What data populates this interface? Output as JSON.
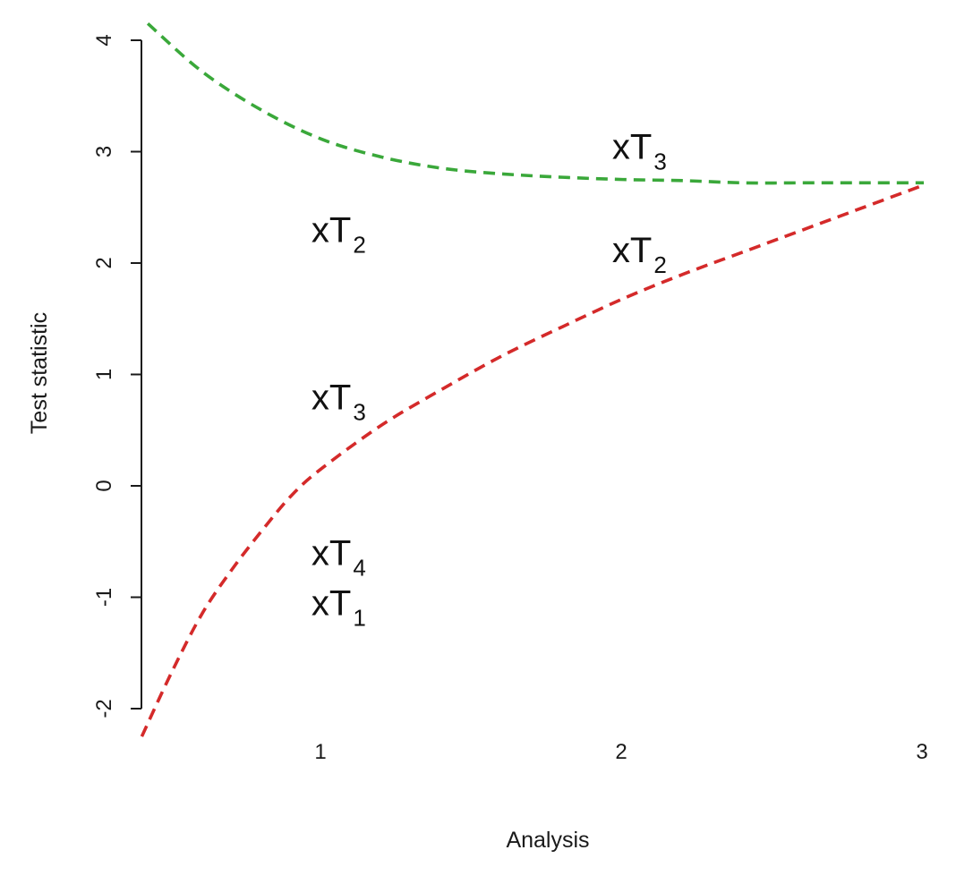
{
  "chart_data": {
    "type": "line",
    "title": "",
    "xlabel": "Analysis",
    "ylabel": "Test statistic",
    "xlim": [
      0.4,
      3.0
    ],
    "ylim": [
      -2.3,
      4.2
    ],
    "x_ticks": [
      1,
      2,
      3
    ],
    "y_ticks": [
      -2,
      -1,
      0,
      1,
      2,
      3,
      4
    ],
    "grid": false,
    "legend": "none",
    "series": [
      {
        "color": "#3aa83a",
        "line_style": "dashed",
        "x": [
          0.42,
          0.6,
          0.8,
          1.0,
          1.2,
          1.4,
          1.6,
          1.8,
          2.0,
          2.2,
          2.4,
          2.6,
          2.8,
          3.0
        ],
        "y": [
          4.15,
          3.72,
          3.37,
          3.11,
          2.95,
          2.85,
          2.8,
          2.77,
          2.75,
          2.74,
          2.72,
          2.72,
          2.72,
          2.72
        ]
      },
      {
        "color": "#d42a2a",
        "line_style": "dashed",
        "x": [
          0.4,
          0.5,
          0.6,
          0.7,
          0.8,
          0.9,
          1.0,
          1.2,
          1.4,
          1.6,
          1.8,
          2.0,
          2.2,
          2.4,
          2.6,
          2.8,
          3.0
        ],
        "y": [
          -2.25,
          -1.67,
          -1.15,
          -0.75,
          -0.4,
          -0.08,
          0.16,
          0.55,
          0.87,
          1.17,
          1.43,
          1.68,
          1.9,
          2.1,
          2.3,
          2.5,
          2.7
        ]
      }
    ],
    "annotations": [
      {
        "label": "xT",
        "sub": "2",
        "x": 0.97,
        "y": 2.3
      },
      {
        "label": "xT",
        "sub": "3",
        "x": 0.97,
        "y": 0.8
      },
      {
        "label": "xT",
        "sub": "4",
        "x": 0.97,
        "y": -0.6
      },
      {
        "label": "xT",
        "sub": "1",
        "x": 0.97,
        "y": -1.05
      },
      {
        "label": "xT",
        "sub": "3",
        "x": 1.97,
        "y": 3.05
      },
      {
        "label": "xT",
        "sub": "2",
        "x": 1.97,
        "y": 2.12
      }
    ]
  }
}
